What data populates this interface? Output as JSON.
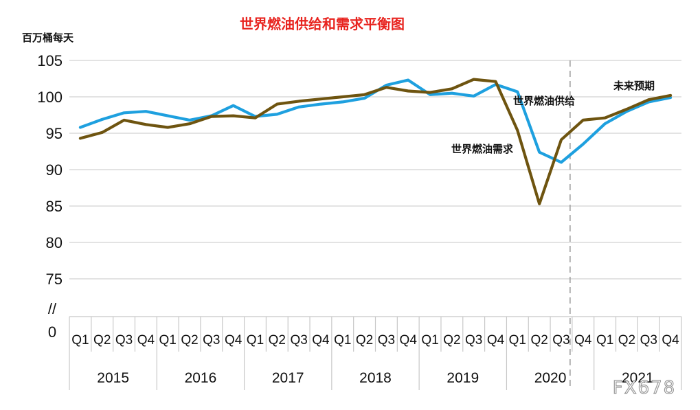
{
  "chart_data": {
    "type": "line",
    "title": "世界燃油供给和需求平衡图",
    "ylabel": "百万桶每天",
    "ylim": [
      75,
      105
    ],
    "yticks": [
      "105",
      "100",
      "95",
      "90",
      "85",
      "80",
      "75"
    ],
    "axis_break_label": "//",
    "axis_zero_label": "0",
    "grid": true,
    "quarter_labels": [
      "Q1",
      "Q2",
      "Q3",
      "Q4",
      "Q1",
      "Q2",
      "Q3",
      "Q4",
      "Q1",
      "Q2",
      "Q3",
      "Q4",
      "Q1",
      "Q2",
      "Q3",
      "Q4",
      "Q1",
      "Q2",
      "Q3",
      "Q4",
      "Q1",
      "Q2",
      "Q3",
      "Q4",
      "Q1",
      "Q2",
      "Q3",
      "Q4"
    ],
    "years": [
      "2015",
      "2016",
      "2017",
      "2018",
      "2019",
      "2020",
      "2021"
    ],
    "forecast_label": "未来预期",
    "forecast_start_index": 23,
    "series": [
      {
        "name": "世界燃油供给",
        "color": "#1ea0df",
        "values": [
          95.8,
          96.9,
          97.8,
          98.0,
          97.4,
          96.8,
          97.4,
          98.8,
          97.3,
          97.6,
          98.6,
          99.0,
          99.3,
          99.8,
          101.6,
          102.3,
          100.3,
          100.5,
          100.1,
          101.7,
          100.7,
          92.4,
          91.0,
          93.5,
          96.3,
          98.0,
          99.3,
          99.9
        ]
      },
      {
        "name": "世界燃油需求",
        "color": "#6e5410",
        "values": [
          94.3,
          95.1,
          96.8,
          96.2,
          95.8,
          96.3,
          97.3,
          97.4,
          97.1,
          99.0,
          99.4,
          99.7,
          100.0,
          100.3,
          101.3,
          100.8,
          100.6,
          101.1,
          102.4,
          102.1,
          95.4,
          85.3,
          94.1,
          96.8,
          97.1,
          98.3,
          99.6,
          100.2
        ]
      }
    ]
  },
  "watermark": "FX678"
}
